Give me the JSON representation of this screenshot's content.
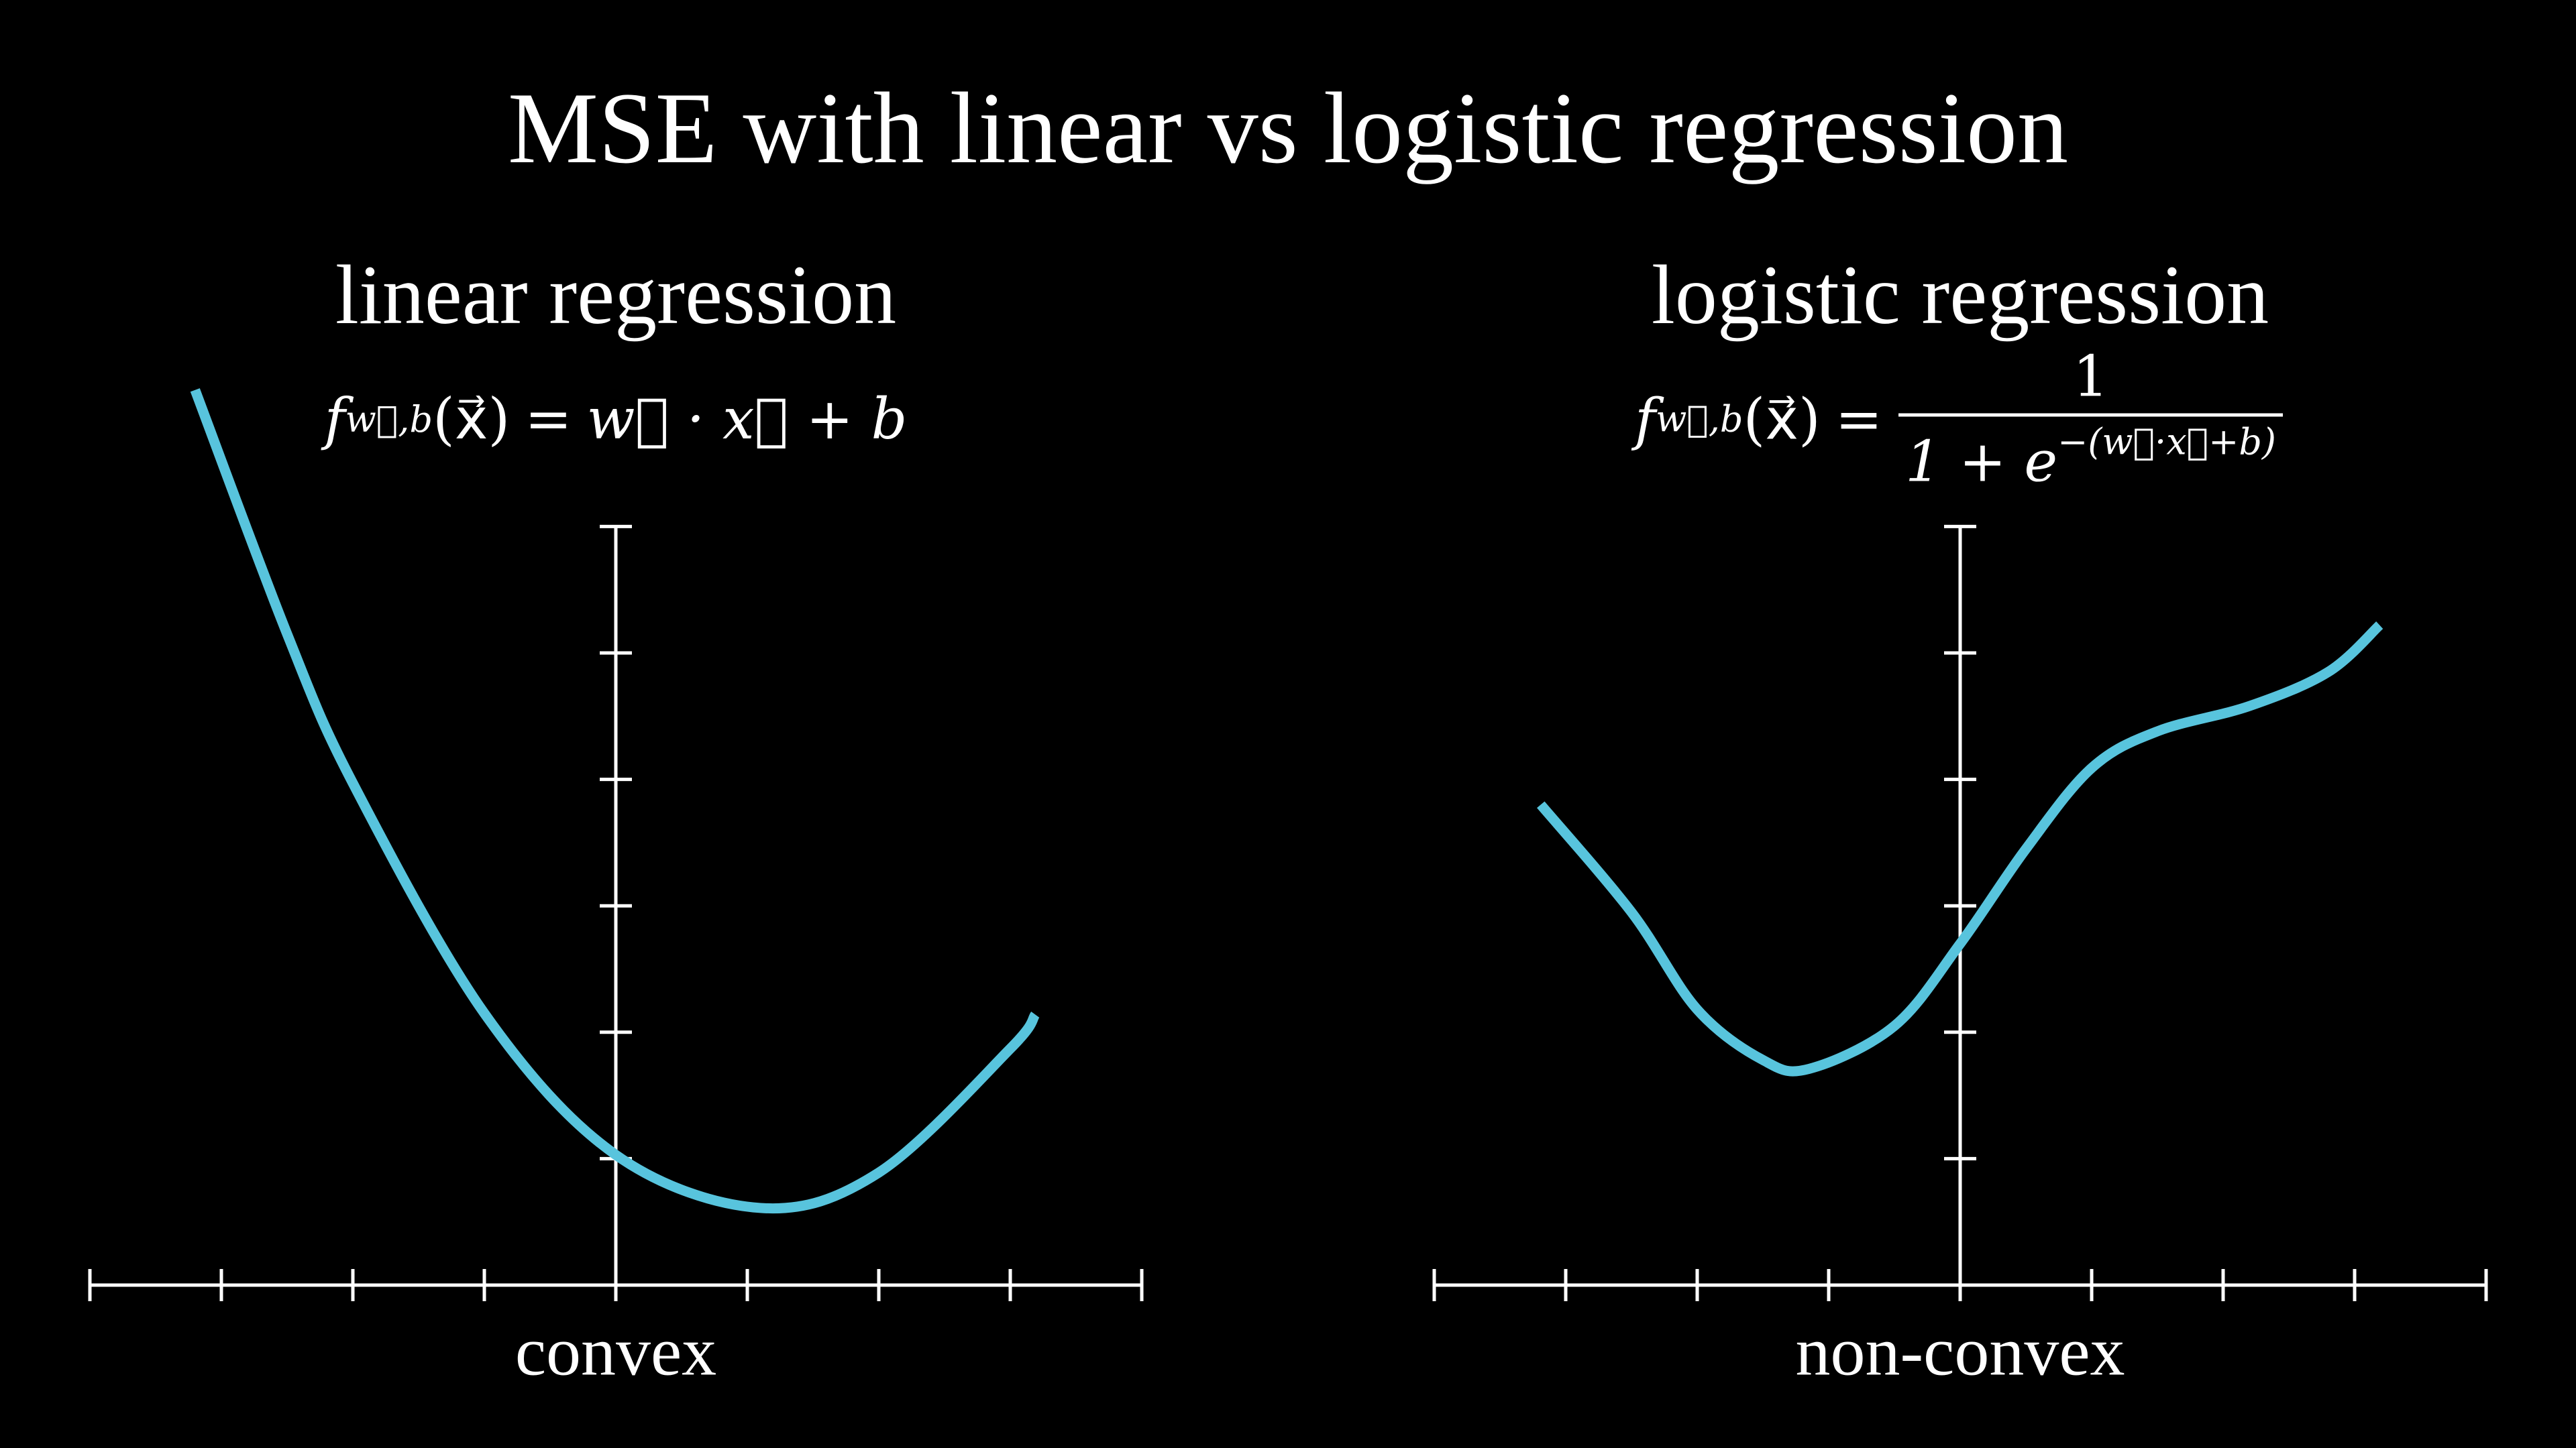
{
  "title": "MSE with linear vs logistic regression",
  "panels": [
    {
      "heading": "linear regression",
      "formula": {
        "f": "f",
        "sub": "w⃗,b",
        "arg": "(x⃗)",
        "eq": "=",
        "rhs": "w⃗ · x⃗ + b"
      },
      "caption": "convex",
      "curve_points": [
        [
          -3.2,
          7.08
        ],
        [
          -2.5,
          5.15
        ],
        [
          -2,
          3.97
        ],
        [
          -1,
          2.15
        ],
        [
          0,
          1.03
        ],
        [
          1.1,
          0.61
        ],
        [
          2,
          0.89
        ],
        [
          3,
          1.87
        ],
        [
          3.19,
          2.14
        ]
      ]
    },
    {
      "heading": "logistic regression",
      "formula": {
        "f": "f",
        "sub": "w⃗,b",
        "arg": "(x⃗)",
        "eq": "=",
        "numerator": "1",
        "denominator": "1 + e",
        "exponent": "−(w⃗·x⃗+b)"
      },
      "caption": "non-convex",
      "curve_points": [
        [
          -3.19,
          3.8
        ],
        [
          -2.5,
          2.95
        ],
        [
          -2,
          2.18
        ],
        [
          -1.5,
          1.78
        ],
        [
          -1.15,
          1.71
        ],
        [
          -0.5,
          2.05
        ],
        [
          0,
          2.7
        ],
        [
          0.5,
          3.45
        ],
        [
          1,
          4.09
        ],
        [
          1.5,
          4.38
        ],
        [
          2.2,
          4.58
        ],
        [
          2.8,
          4.85
        ],
        [
          3.19,
          5.22
        ]
      ]
    }
  ],
  "axes": {
    "x_range": [
      -4,
      4
    ],
    "y_range": [
      0,
      6
    ],
    "ticks": true,
    "tick_labels": false,
    "grid": false
  },
  "colors": {
    "background": "#000000",
    "curve": "#58C4DD",
    "axes": "#FFFFFF",
    "text": "#FFFFFF"
  }
}
